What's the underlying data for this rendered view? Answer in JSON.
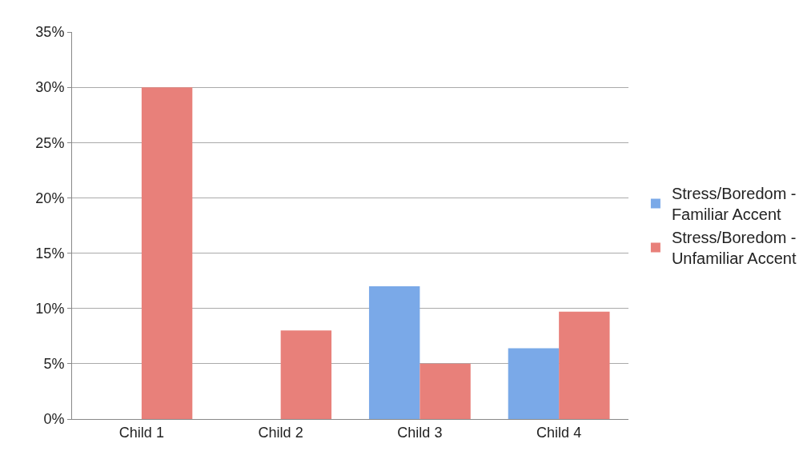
{
  "chart_data": {
    "type": "bar",
    "categories": [
      "Child 1",
      "Child 2",
      "Child 3",
      "Child 4"
    ],
    "series": [
      {
        "name": "Stress/Boredom - Familiar Accent",
        "color": "#7aa9e8",
        "values": [
          0,
          0,
          12,
          6.4
        ]
      },
      {
        "name": "Stress/Boredom - Unfamiliar Accent",
        "color": "#e8807a",
        "values": [
          30,
          8,
          5,
          9.7
        ]
      }
    ],
    "ylim": [
      0,
      35
    ],
    "yticks": [
      {
        "value": 0,
        "label": "0%"
      },
      {
        "value": 5,
        "label": "5%"
      },
      {
        "value": 10,
        "label": "10%"
      },
      {
        "value": 15,
        "label": "15%"
      },
      {
        "value": 20,
        "label": "20%"
      },
      {
        "value": 25,
        "label": "25%"
      },
      {
        "value": 30,
        "label": "30%"
      },
      {
        "value": 35,
        "label": "35%"
      }
    ],
    "grid": "y",
    "legend": "right"
  }
}
